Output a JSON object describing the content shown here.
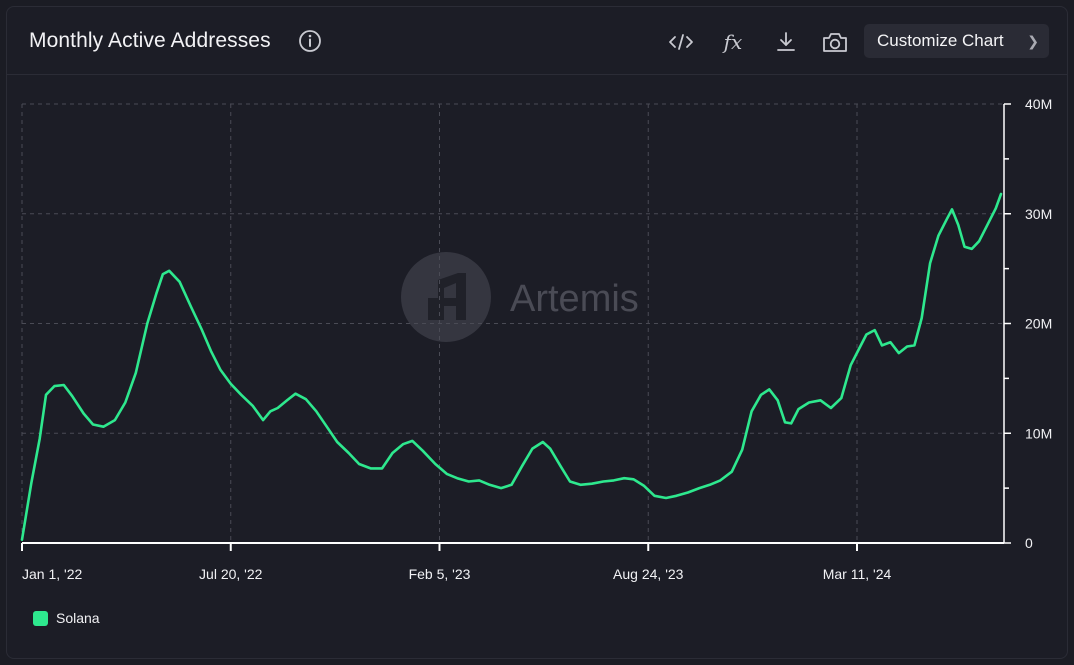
{
  "header": {
    "title": "Monthly Active Addresses",
    "customize_label": "Customize Chart"
  },
  "toolbar": {
    "icons": [
      "embed-code-icon",
      "formula-icon",
      "download-icon",
      "camera-icon"
    ]
  },
  "watermark": {
    "text": "Artemis"
  },
  "colors": {
    "series": "#2ee88e",
    "background": "#1c1d26",
    "grid": "#4a4b55",
    "axis": "#ffffff"
  },
  "chart_data": {
    "type": "line",
    "title": "Monthly Active Addresses",
    "xlabel": "",
    "ylabel": "",
    "x_ticks": [
      "Jan 1, '22",
      "Jul 20, '22",
      "Feb 5, '23",
      "Aug 24, '23",
      "Mar 11, '24"
    ],
    "y_ticks": [
      "0",
      "10M",
      "20M",
      "30M",
      "40M"
    ],
    "ylim": [
      0,
      40000000
    ],
    "xlim": [
      "2022-01-01",
      "2024-08-25"
    ],
    "grid": true,
    "legend_position": "bottom-left",
    "series": [
      {
        "name": "Solana",
        "color": "#2ee88e",
        "points": [
          [
            "2022-01-01",
            0.3
          ],
          [
            "2022-01-10",
            5.5
          ],
          [
            "2022-01-18",
            9.5
          ],
          [
            "2022-01-24",
            13.5
          ],
          [
            "2022-02-01",
            14.3
          ],
          [
            "2022-02-10",
            14.4
          ],
          [
            "2022-02-18",
            13.4
          ],
          [
            "2022-03-01",
            11.8
          ],
          [
            "2022-03-10",
            10.8
          ],
          [
            "2022-03-20",
            10.6
          ],
          [
            "2022-03-31",
            11.2
          ],
          [
            "2022-04-10",
            12.8
          ],
          [
            "2022-04-20",
            15.5
          ],
          [
            "2022-05-01",
            20.0
          ],
          [
            "2022-05-10",
            22.8
          ],
          [
            "2022-05-16",
            24.5
          ],
          [
            "2022-05-22",
            24.8
          ],
          [
            "2022-06-01",
            23.8
          ],
          [
            "2022-06-12",
            21.5
          ],
          [
            "2022-06-22",
            19.5
          ],
          [
            "2022-07-01",
            17.5
          ],
          [
            "2022-07-10",
            15.8
          ],
          [
            "2022-07-20",
            14.5
          ],
          [
            "2022-07-30",
            13.5
          ],
          [
            "2022-08-10",
            12.5
          ],
          [
            "2022-08-20",
            11.2
          ],
          [
            "2022-08-27",
            12.0
          ],
          [
            "2022-09-03",
            12.3
          ],
          [
            "2022-09-12",
            13.0
          ],
          [
            "2022-09-20",
            13.6
          ],
          [
            "2022-09-30",
            13.1
          ],
          [
            "2022-10-10",
            12.0
          ],
          [
            "2022-10-20",
            10.6
          ],
          [
            "2022-10-30",
            9.2
          ],
          [
            "2022-11-10",
            8.2
          ],
          [
            "2022-11-20",
            7.2
          ],
          [
            "2022-12-01",
            6.8
          ],
          [
            "2022-12-12",
            6.8
          ],
          [
            "2022-12-22",
            8.2
          ],
          [
            "2023-01-01",
            9.0
          ],
          [
            "2023-01-10",
            9.3
          ],
          [
            "2023-01-20",
            8.4
          ],
          [
            "2023-02-01",
            7.2
          ],
          [
            "2023-02-12",
            6.3
          ],
          [
            "2023-02-22",
            5.9
          ],
          [
            "2023-03-05",
            5.6
          ],
          [
            "2023-03-15",
            5.7
          ],
          [
            "2023-03-25",
            5.3
          ],
          [
            "2023-04-05",
            5.0
          ],
          [
            "2023-04-15",
            5.3
          ],
          [
            "2023-04-25",
            7.0
          ],
          [
            "2023-05-05",
            8.6
          ],
          [
            "2023-05-15",
            9.2
          ],
          [
            "2023-05-22",
            8.6
          ],
          [
            "2023-06-01",
            7.0
          ],
          [
            "2023-06-10",
            5.6
          ],
          [
            "2023-06-20",
            5.3
          ],
          [
            "2023-07-01",
            5.4
          ],
          [
            "2023-07-12",
            5.6
          ],
          [
            "2023-07-22",
            5.7
          ],
          [
            "2023-08-01",
            5.9
          ],
          [
            "2023-08-10",
            5.8
          ],
          [
            "2023-08-20",
            5.2
          ],
          [
            "2023-08-30",
            4.3
          ],
          [
            "2023-09-10",
            4.1
          ],
          [
            "2023-09-20",
            4.3
          ],
          [
            "2023-10-01",
            4.6
          ],
          [
            "2023-10-12",
            5.0
          ],
          [
            "2023-10-22",
            5.3
          ],
          [
            "2023-11-01",
            5.7
          ],
          [
            "2023-11-12",
            6.5
          ],
          [
            "2023-11-22",
            8.5
          ],
          [
            "2023-12-01",
            12.0
          ],
          [
            "2023-12-10",
            13.5
          ],
          [
            "2023-12-18",
            14.0
          ],
          [
            "2023-12-26",
            13.0
          ],
          [
            "2024-01-02",
            11.0
          ],
          [
            "2024-01-08",
            10.9
          ],
          [
            "2024-01-15",
            12.2
          ],
          [
            "2024-01-25",
            12.8
          ],
          [
            "2024-02-05",
            13.0
          ],
          [
            "2024-02-15",
            12.3
          ],
          [
            "2024-02-25",
            13.2
          ],
          [
            "2024-03-05",
            16.2
          ],
          [
            "2024-03-12",
            17.5
          ],
          [
            "2024-03-20",
            19.0
          ],
          [
            "2024-03-28",
            19.4
          ],
          [
            "2024-04-04",
            18.0
          ],
          [
            "2024-04-12",
            18.3
          ],
          [
            "2024-04-20",
            17.3
          ],
          [
            "2024-04-28",
            17.9
          ],
          [
            "2024-05-05",
            18.0
          ],
          [
            "2024-05-12",
            20.5
          ],
          [
            "2024-05-20",
            25.5
          ],
          [
            "2024-05-28",
            28.0
          ],
          [
            "2024-06-05",
            29.5
          ],
          [
            "2024-06-10",
            30.4
          ],
          [
            "2024-06-16",
            29.0
          ],
          [
            "2024-06-22",
            27.0
          ],
          [
            "2024-06-29",
            26.8
          ],
          [
            "2024-07-06",
            27.5
          ],
          [
            "2024-07-14",
            29.0
          ],
          [
            "2024-07-22",
            30.5
          ],
          [
            "2024-07-27",
            31.8
          ]
        ]
      }
    ]
  }
}
